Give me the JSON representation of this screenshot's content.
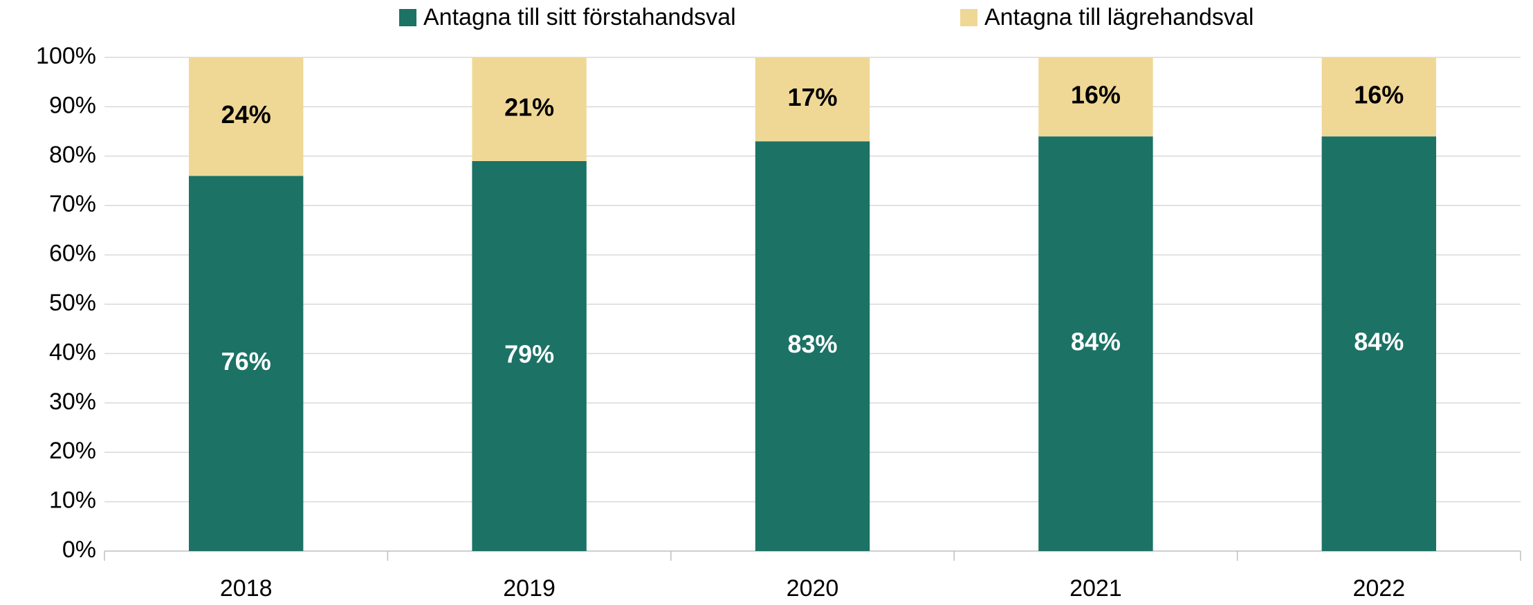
{
  "chart_data": {
    "type": "stacked_bar",
    "categories": [
      "2018",
      "2019",
      "2020",
      "2021",
      "2022"
    ],
    "series": [
      {
        "name": "Antagna till sitt förstahandsval",
        "color": "#1b7265",
        "label_color": "#ffffff",
        "values": [
          76,
          79,
          83,
          84,
          84
        ],
        "value_labels": [
          "76%",
          "79%",
          "83%",
          "84%",
          "84%"
        ]
      },
      {
        "name": "Antagna till lägrehandsval",
        "color": "#efd896",
        "label_color": "#000000",
        "values": [
          24,
          21,
          17,
          16,
          16
        ],
        "value_labels": [
          "24%",
          "21%",
          "17%",
          "16%",
          "16%"
        ]
      }
    ],
    "ylim": [
      0,
      100
    ],
    "yticks": [
      {
        "value": 0,
        "label": "0%"
      },
      {
        "value": 10,
        "label": "10%"
      },
      {
        "value": 20,
        "label": "20%"
      },
      {
        "value": 30,
        "label": "30%"
      },
      {
        "value": 40,
        "label": "40%"
      },
      {
        "value": 50,
        "label": "50%"
      },
      {
        "value": 60,
        "label": "60%"
      },
      {
        "value": 70,
        "label": "70%"
      },
      {
        "value": 80,
        "label": "80%"
      },
      {
        "value": 90,
        "label": "90%"
      },
      {
        "value": 100,
        "label": "100%"
      }
    ],
    "grid": true,
    "legend": "top"
  }
}
